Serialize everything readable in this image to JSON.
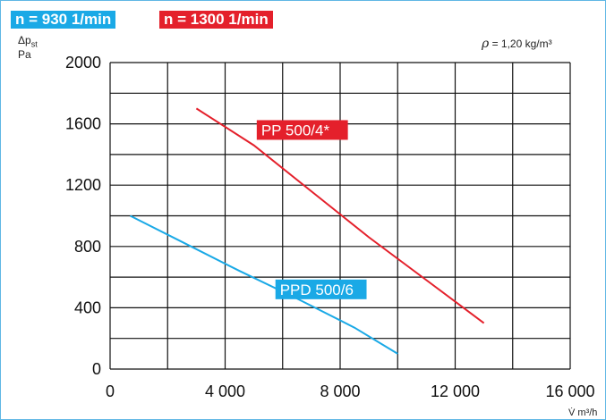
{
  "legend": {
    "speed_low": "n = 930 1/min",
    "speed_high": "n = 1300 1/min"
  },
  "axis": {
    "y_symbol": "Δp",
    "y_symbol_sub": "st",
    "y_unit": "Pa",
    "x_unit": "V̇ m³/h"
  },
  "density": {
    "symbol": "ρ",
    "text": "= 1,20 kg/m³"
  },
  "colors": {
    "low_speed": "#1aa9e6",
    "high_speed": "#e4202b",
    "grid": "#111111",
    "frame": "#5fb7e4"
  },
  "chart_data": {
    "type": "line",
    "xlim": [
      0,
      16000
    ],
    "ylim": [
      0,
      2000
    ],
    "x_ticks": [
      0,
      4000,
      8000,
      12000,
      16000
    ],
    "x_tick_labels": [
      "0",
      "4 000",
      "8 000",
      "12 000",
      "16 000"
    ],
    "y_ticks": [
      0,
      400,
      800,
      1200,
      1600,
      2000
    ],
    "y_tick_labels": [
      "0",
      "400",
      "800",
      "1200",
      "1600",
      "2000"
    ],
    "grid": true,
    "series": [
      {
        "name": "PP 500/4*",
        "color": "#e4202b",
        "x": [
          3000,
          5000,
          7000,
          9000,
          11000,
          13000
        ],
        "y": [
          1700,
          1460,
          1160,
          860,
          580,
          300
        ]
      },
      {
        "name": "PPD 500/6",
        "color": "#1aa9e6",
        "x": [
          700,
          2500,
          4500,
          6500,
          8500,
          10000
        ],
        "y": [
          1000,
          830,
          640,
          460,
          270,
          100
        ]
      }
    ]
  }
}
